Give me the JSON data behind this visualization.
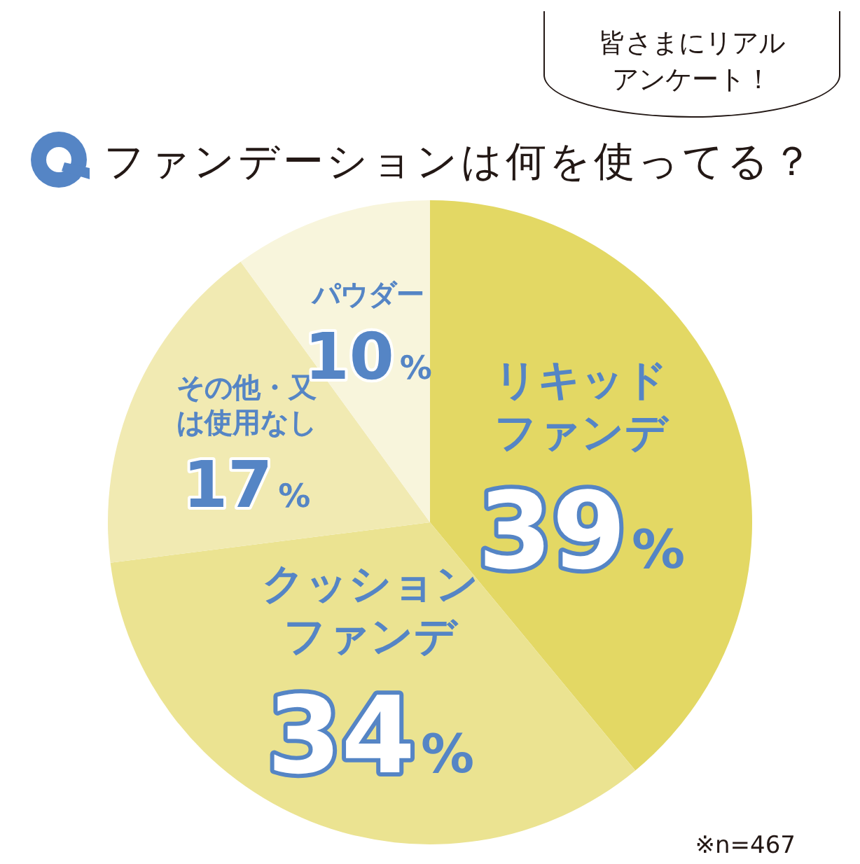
{
  "chart_data": {
    "type": "pie",
    "title": "ファンデーションは何を使ってる？",
    "categories": [
      "リキッドファンデ",
      "クッションファンデ",
      "その他・又は使用なし",
      "パウダー"
    ],
    "values": [
      39,
      34,
      17,
      10
    ],
    "value_labels": [
      "39%",
      "34%",
      "17%",
      "10%"
    ],
    "colors": [
      "#e3d864",
      "#ebe391",
      "#f1eab2",
      "#f8f5dc"
    ],
    "legend": false,
    "annotations": [
      "皆さまにリアルアンケート！",
      "※n=467"
    ]
  }
}
